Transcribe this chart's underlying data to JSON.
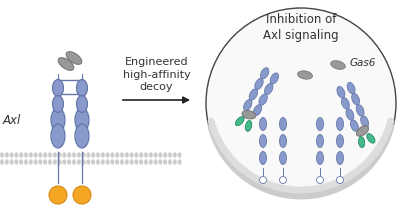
{
  "bg_color": "#ffffff",
  "axl_color": "#8899cc",
  "axl_edge": "#6677aa",
  "gas6_color": "#999999",
  "gas6_edge": "#777777",
  "kinase_color": "#f5a623",
  "kinase_edge": "#d4891a",
  "green_color": "#44bb88",
  "green_edge": "#228866",
  "circle_edge": "#444444",
  "text_color": "#333333",
  "arrow_color": "#222222",
  "mem_color1": "#cccccc",
  "mem_color2": "#dddddd",
  "title_text": "Inhibition of\nAxl signaling",
  "label_text": "Engineered\nhigh-affinity\ndecoy",
  "axl_label": "Axl",
  "gas6_label": "Gas6",
  "title_fontsize": 8.5,
  "label_fontsize": 8.0,
  "axl_fontsize": 8.5
}
